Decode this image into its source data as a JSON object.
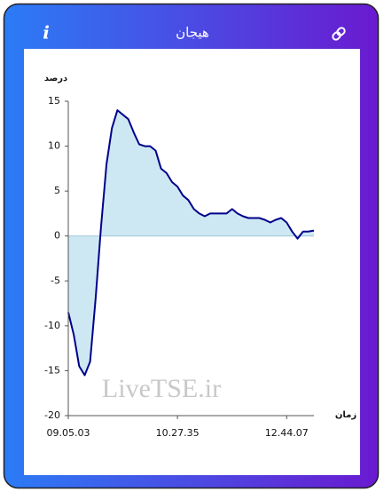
{
  "header": {
    "title": "هیجان",
    "info_label": "i"
  },
  "chart_data": {
    "type": "area",
    "y_label": "درصد",
    "x_label": "زمان",
    "watermark": "LiveTSE.ir",
    "categories": [
      "09.05.03",
      null,
      null,
      null,
      null,
      null,
      null,
      null,
      null,
      null,
      null,
      null,
      null,
      null,
      null,
      null,
      null,
      null,
      null,
      null,
      "10.27.35",
      null,
      null,
      null,
      null,
      null,
      null,
      null,
      null,
      null,
      null,
      null,
      null,
      null,
      null,
      null,
      null,
      null,
      null,
      null,
      "12.44.07",
      null,
      null,
      null,
      null,
      null
    ],
    "series": [
      {
        "name": "هیجان",
        "color": "#00008b",
        "fill": "#cde8f2",
        "values": [
          -8.5,
          -11,
          -14.5,
          -15.5,
          -14,
          -7,
          1,
          8,
          12,
          14,
          13.5,
          13,
          11.5,
          10.2,
          10,
          10,
          9.5,
          7.5,
          7,
          6,
          5.5,
          4.5,
          4,
          3,
          2.5,
          2.2,
          2.5,
          2.5,
          2.5,
          2.5,
          3,
          2.5,
          2.2,
          2,
          2,
          2,
          1.8,
          1.5,
          1.8,
          2,
          1.5,
          0.5,
          -0.3,
          0.5,
          0.5,
          0.6
        ]
      }
    ],
    "ylim": [
      -20,
      15
    ],
    "yticks": [
      15,
      10,
      5,
      0,
      -5,
      -10,
      -15,
      -20
    ],
    "zero_line_color": "#9fc5d8"
  }
}
